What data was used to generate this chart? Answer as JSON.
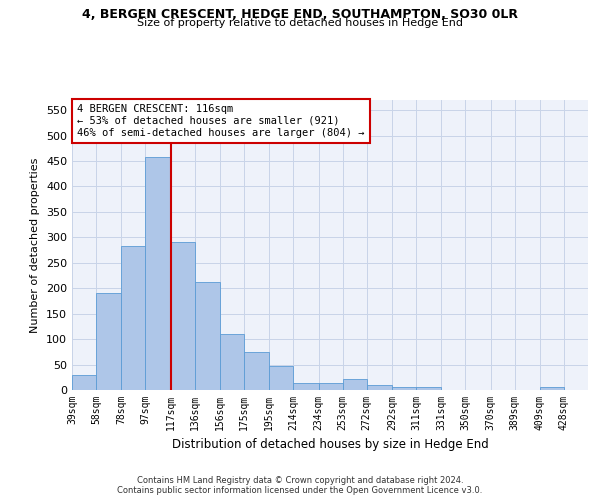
{
  "title_line1": "4, BERGEN CRESCENT, HEDGE END, SOUTHAMPTON, SO30 0LR",
  "title_line2": "Size of property relative to detached houses in Hedge End",
  "xlabel": "Distribution of detached houses by size in Hedge End",
  "ylabel": "Number of detached properties",
  "bar_color": "#aec6e8",
  "bar_edge_color": "#5b9bd5",
  "grid_color": "#c8d4e8",
  "background_color": "#eef2fa",
  "marker_line_color": "#cc0000",
  "annotation_title": "4 BERGEN CRESCENT: 116sqm",
  "annotation_line1": "← 53% of detached houses are smaller (921)",
  "annotation_line2": "46% of semi-detached houses are larger (804) →",
  "bin_labels": [
    "39sqm",
    "58sqm",
    "78sqm",
    "97sqm",
    "117sqm",
    "136sqm",
    "156sqm",
    "175sqm",
    "195sqm",
    "214sqm",
    "234sqm",
    "253sqm",
    "272sqm",
    "292sqm",
    "311sqm",
    "331sqm",
    "350sqm",
    "370sqm",
    "389sqm",
    "409sqm",
    "428sqm"
  ],
  "bin_edges": [
    39,
    58,
    78,
    97,
    117,
    136,
    156,
    175,
    195,
    214,
    234,
    253,
    272,
    292,
    311,
    331,
    350,
    370,
    389,
    409,
    428,
    447
  ],
  "bar_heights": [
    30,
    190,
    284,
    458,
    290,
    213,
    110,
    74,
    47,
    13,
    13,
    21,
    10,
    5,
    5,
    0,
    0,
    0,
    0,
    5,
    0
  ],
  "ylim": [
    0,
    570
  ],
  "yticks": [
    0,
    50,
    100,
    150,
    200,
    250,
    300,
    350,
    400,
    450,
    500,
    550
  ],
  "footnote1": "Contains HM Land Registry data © Crown copyright and database right 2024.",
  "footnote2": "Contains public sector information licensed under the Open Government Licence v3.0."
}
